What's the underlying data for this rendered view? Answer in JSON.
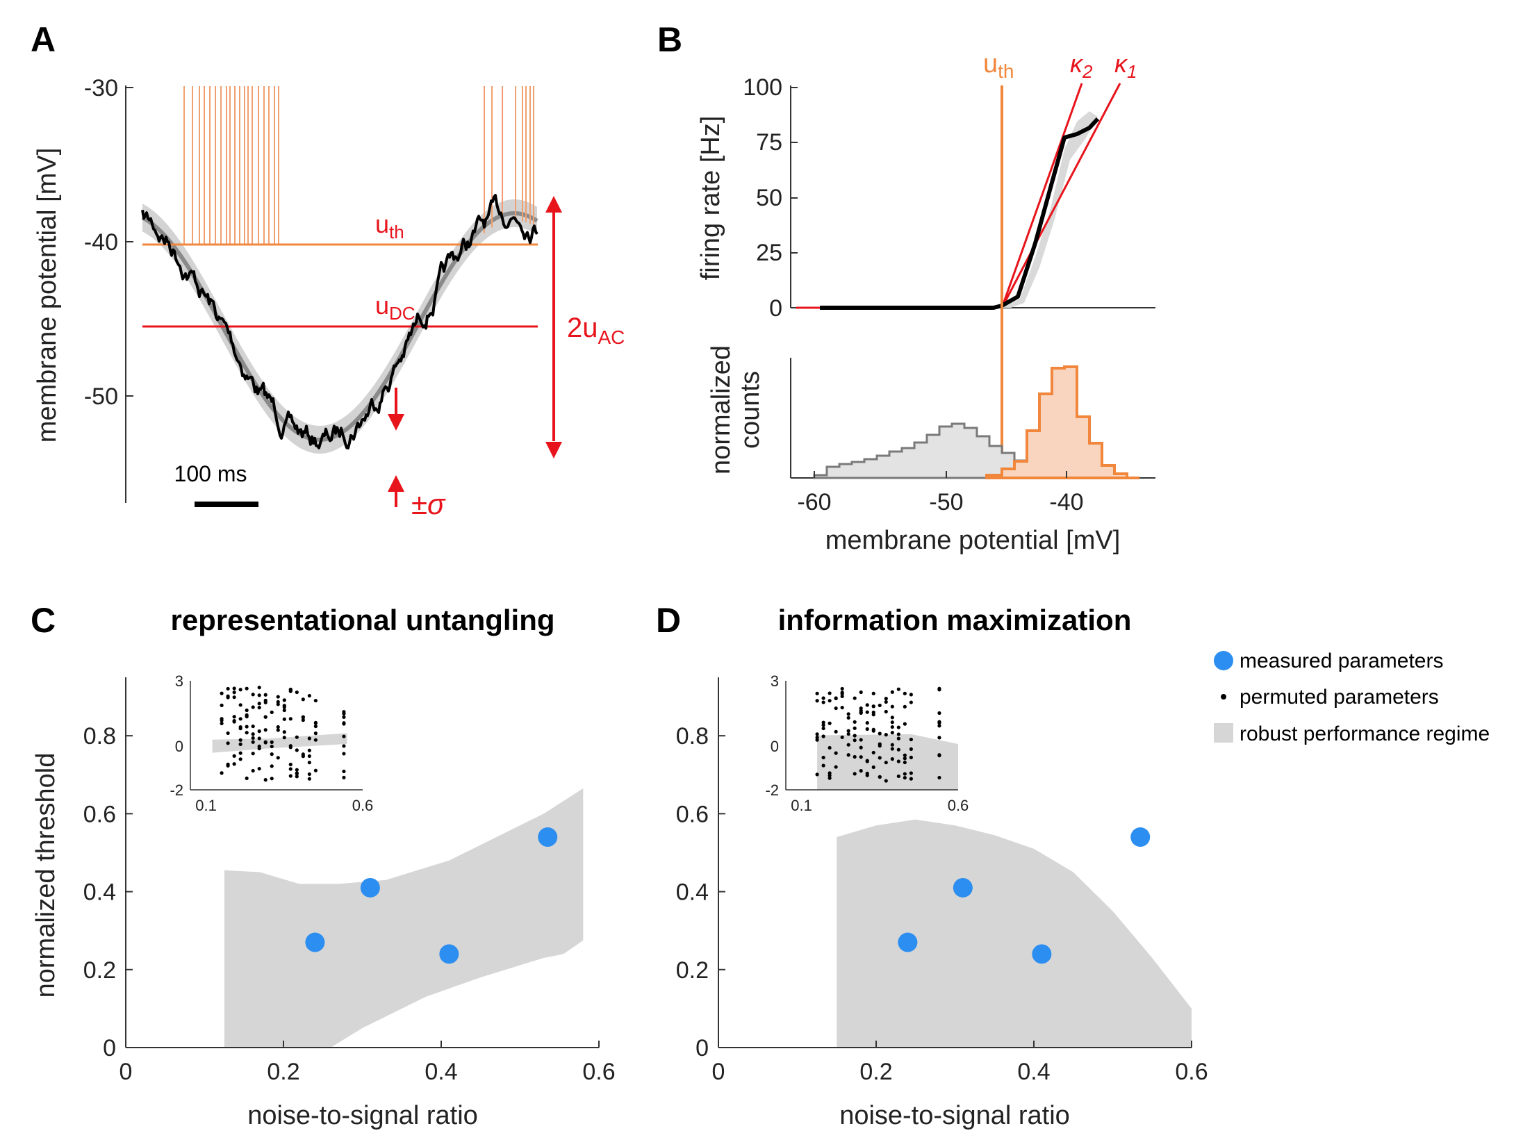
{
  "panels": {
    "A": {
      "letter": "A",
      "ylabel": "membrane potential [mV]",
      "yticks": [
        "-30",
        "-40",
        "-50"
      ],
      "scalebar_label": "100 ms",
      "u_th_label": "u",
      "u_th_sub": "th",
      "u_dc_label": "u",
      "u_dc_sub": "DC",
      "u_ac_label": "2u",
      "u_ac_sub": "AC",
      "sigma_label": "±σ",
      "colors": {
        "threshold": "#f0873c",
        "dc": "#e8141c",
        "trace": "#000000",
        "band": "#d3d3d3"
      }
    },
    "B": {
      "letter": "B",
      "ylabel_top": "firing rate [Hz]",
      "ylabel_bottom": [
        "normalized",
        "counts"
      ],
      "xlabel": "membrane potential [mV]",
      "yticks": [
        "100",
        "75",
        "50",
        "25",
        "0"
      ],
      "xticks": [
        "-60",
        "-50",
        "-40"
      ],
      "u_th_label": "u",
      "u_th_sub": "th",
      "kappa2_label": "κ",
      "kappa2_sub": "2",
      "kappa1_label": "κ",
      "kappa1_sub": "1"
    },
    "C": {
      "letter": "C",
      "title": "representational untangling",
      "ylabel": "normalized threshold",
      "xlabel": "noise-to-signal ratio",
      "xticks": [
        "0",
        "0.2",
        "0.4",
        "0.6"
      ],
      "yticks": [
        "0",
        "0.2",
        "0.4",
        "0.6",
        "0.8"
      ],
      "inset_xticks": [
        "0.1",
        "0.6"
      ],
      "inset_yticks": [
        "3",
        "0",
        "-2"
      ]
    },
    "D": {
      "letter": "D",
      "title": "information maximization",
      "xlabel": "noise-to-signal ratio",
      "xticks": [
        "0",
        "0.2",
        "0.4",
        "0.6"
      ],
      "yticks": [
        "0",
        "0.2",
        "0.4",
        "0.6",
        "0.8"
      ],
      "inset_xticks": [
        "0.1",
        "0.6"
      ],
      "inset_yticks": [
        "3",
        "0",
        "-2"
      ]
    }
  },
  "legend": {
    "measured": "measured parameters",
    "permuted": "permuted parameters",
    "robust": "robust performance regime",
    "colors": {
      "measured": "#2b8ef0",
      "permuted": "#000000",
      "robust": "#d6d6d6"
    }
  },
  "chart_data": [
    {
      "type": "line",
      "panel": "A",
      "ylabel": "membrane potential [mV]",
      "ylim": [
        -57,
        -30
      ],
      "series": [
        {
          "name": "u_th",
          "values": [
            -40.2
          ]
        },
        {
          "name": "u_DC",
          "values": [
            -45.6
          ]
        }
      ]
    },
    {
      "type": "line",
      "panel": "B",
      "xlabel": "membrane potential [mV]",
      "ylabel": "firing rate [Hz]",
      "xlim": [
        -62,
        -33
      ],
      "ylim": [
        0,
        100
      ],
      "x": [
        -60,
        -55,
        -50,
        -47,
        -45,
        -44,
        -43,
        -42,
        -41,
        -40,
        -39.5,
        -39,
        -38.5,
        -38
      ],
      "series": [
        {
          "name": "firing rate",
          "values": [
            0,
            0,
            0,
            0,
            0.5,
            2,
            5,
            20,
            35,
            55,
            77,
            78,
            80,
            86
          ]
        }
      ]
    },
    {
      "type": "scatter",
      "panel": "C",
      "title": "representational untangling",
      "xlabel": "noise-to-signal ratio",
      "ylabel": "normalized threshold",
      "xlim": [
        0,
        0.6
      ],
      "ylim": [
        0,
        0.95
      ],
      "series": [
        {
          "name": "measured parameters",
          "x": [
            0.24,
            0.31,
            0.41,
            0.535
          ],
          "y": [
            0.27,
            0.41,
            0.24,
            0.54
          ]
        }
      ]
    },
    {
      "type": "scatter",
      "panel": "D",
      "title": "information maximization",
      "xlabel": "noise-to-signal ratio",
      "ylabel": "normalized threshold",
      "xlim": [
        0,
        0.6
      ],
      "ylim": [
        0,
        0.95
      ],
      "series": [
        {
          "name": "measured parameters",
          "x": [
            0.24,
            0.31,
            0.41,
            0.535
          ],
          "y": [
            0.27,
            0.41,
            0.24,
            0.54
          ]
        }
      ]
    }
  ]
}
